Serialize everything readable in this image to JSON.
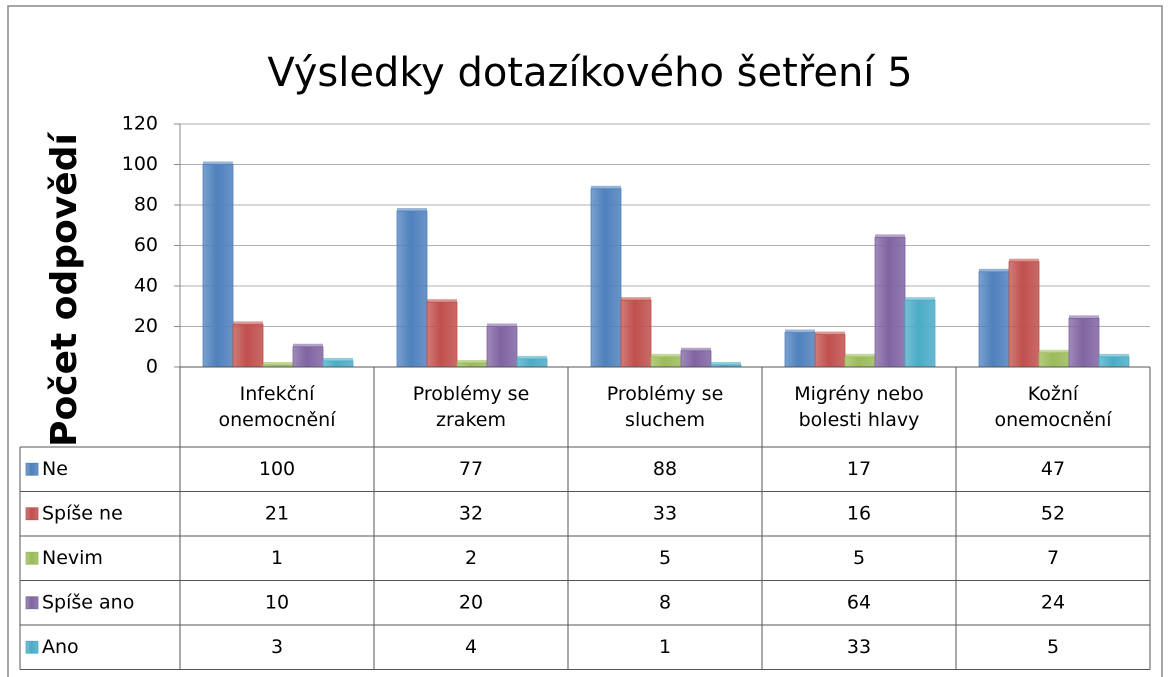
{
  "chart_data": {
    "type": "bar",
    "title": "Výsledky dotazíkového šetření 5",
    "y_label": "Počet odpovědí",
    "categories": [
      "Infekční onemocnění",
      "Problémy se zrakem",
      "Problémy se sluchem",
      "Migrény nebo bolesti hlavy",
      "Kožní onemocnění"
    ],
    "series": [
      {
        "name": "Ne",
        "color": "#4f81bd",
        "values": [
          100,
          77,
          88,
          17,
          47
        ]
      },
      {
        "name": "Spíše ne",
        "color": "#c0504d",
        "values": [
          21,
          32,
          33,
          16,
          52
        ]
      },
      {
        "name": "Nevim",
        "color": "#9bbb59",
        "values": [
          1,
          2,
          5,
          5,
          7
        ]
      },
      {
        "name": "Spíše ano",
        "color": "#8064a2",
        "values": [
          10,
          20,
          8,
          64,
          24
        ]
      },
      {
        "name": "Ano",
        "color": "#4bacc6",
        "values": [
          3,
          4,
          1,
          33,
          5
        ]
      }
    ],
    "ylim": [
      0,
      120
    ],
    "yticks": [
      0,
      20,
      40,
      60,
      80,
      100,
      120
    ],
    "grid": true,
    "data_table": true
  }
}
